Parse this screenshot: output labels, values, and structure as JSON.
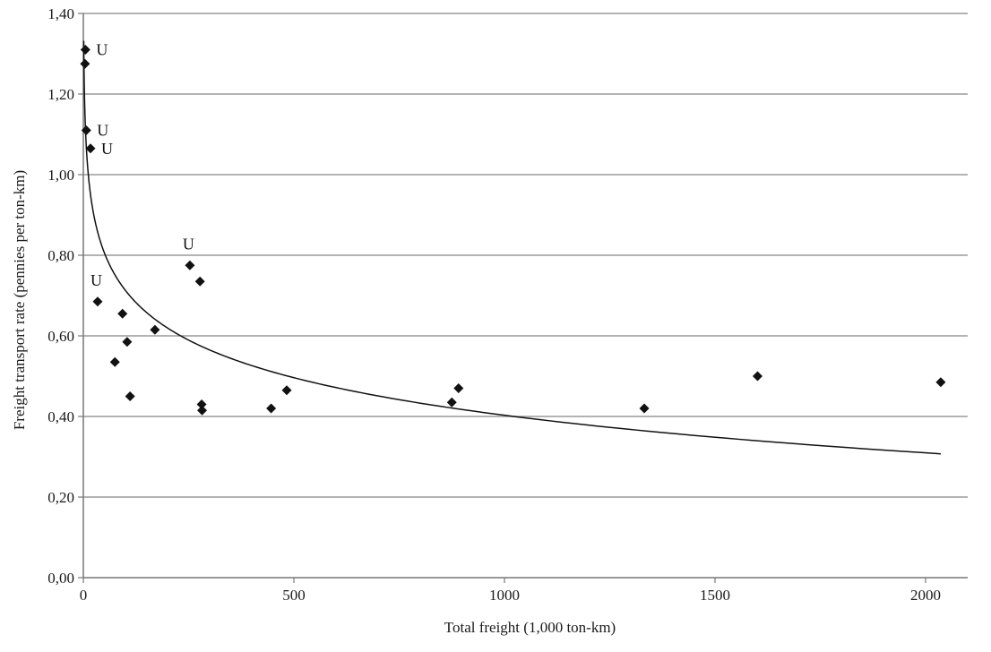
{
  "chart_data": {
    "type": "scatter",
    "title": "",
    "xlabel": "Total freight (1,000 ton-km)",
    "ylabel": "Freight transport rate (pennies per ton-km)",
    "xlim": [
      0,
      2100
    ],
    "ylim": [
      0,
      1.4
    ],
    "x_ticks": [
      0,
      500,
      1000,
      1500,
      2000
    ],
    "x_tick_labels": [
      "0",
      "500",
      "1000",
      "1500",
      "2000"
    ],
    "y_ticks": [
      0,
      0.2,
      0.4,
      0.6,
      0.8,
      1.0,
      1.2,
      1.4
    ],
    "y_tick_labels": [
      "0,00",
      "0,20",
      "0,40",
      "0,60",
      "0,80",
      "1,00",
      "1,20",
      "1,40"
    ],
    "grid": "horizontal",
    "legend": "none",
    "colors": {
      "marker": "#111111",
      "grid": "#9a9a9a",
      "axis": "#777777",
      "trend": "#111111"
    },
    "series": [
      {
        "points": [
          {
            "x": 5,
            "y": 1.31,
            "label": "U"
          },
          {
            "x": 4,
            "y": 1.275,
            "label": ""
          },
          {
            "x": 7,
            "y": 1.11,
            "label": "U"
          },
          {
            "x": 17,
            "y": 1.065,
            "label": "U"
          },
          {
            "x": 34,
            "y": 0.685,
            "label": "U"
          },
          {
            "x": 75,
            "y": 0.535,
            "label": ""
          },
          {
            "x": 93,
            "y": 0.655,
            "label": ""
          },
          {
            "x": 104,
            "y": 0.585,
            "label": ""
          },
          {
            "x": 111,
            "y": 0.45,
            "label": ""
          },
          {
            "x": 170,
            "y": 0.615,
            "label": ""
          },
          {
            "x": 253,
            "y": 0.775,
            "label": "U"
          },
          {
            "x": 277,
            "y": 0.735,
            "label": ""
          },
          {
            "x": 281,
            "y": 0.43,
            "label": ""
          },
          {
            "x": 282,
            "y": 0.415,
            "label": ""
          },
          {
            "x": 446,
            "y": 0.42,
            "label": ""
          },
          {
            "x": 483,
            "y": 0.465,
            "label": ""
          },
          {
            "x": 875,
            "y": 0.435,
            "label": ""
          },
          {
            "x": 891,
            "y": 0.47,
            "label": ""
          },
          {
            "x": 1332,
            "y": 0.42,
            "label": ""
          },
          {
            "x": 1601,
            "y": 0.5,
            "label": ""
          },
          {
            "x": 2036,
            "y": 0.485,
            "label": ""
          }
        ]
      }
    ],
    "trendline": {
      "type": "logarithmic",
      "x_range": [
        1,
        2036
      ]
    }
  }
}
